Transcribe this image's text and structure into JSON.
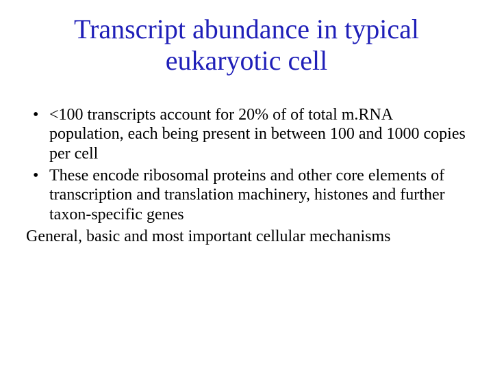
{
  "slide": {
    "title": "Transcript abundance in typical eukaryotic cell",
    "title_color": "#1f1fb8",
    "title_fontsize": 40,
    "body_fontsize": 24,
    "body_color": "#000000",
    "background_color": "#ffffff",
    "font_family": "Times New Roman",
    "bullets": [
      "<100 transcripts account for 20% of of total m.RNA population, each being present in between 100 and 1000 copies per cell",
      "These encode ribosomal proteins and other core elements of transcription and translation machinery, histones and further taxon-specific genes"
    ],
    "closing_line": "General, basic and most important cellular mechanisms"
  }
}
